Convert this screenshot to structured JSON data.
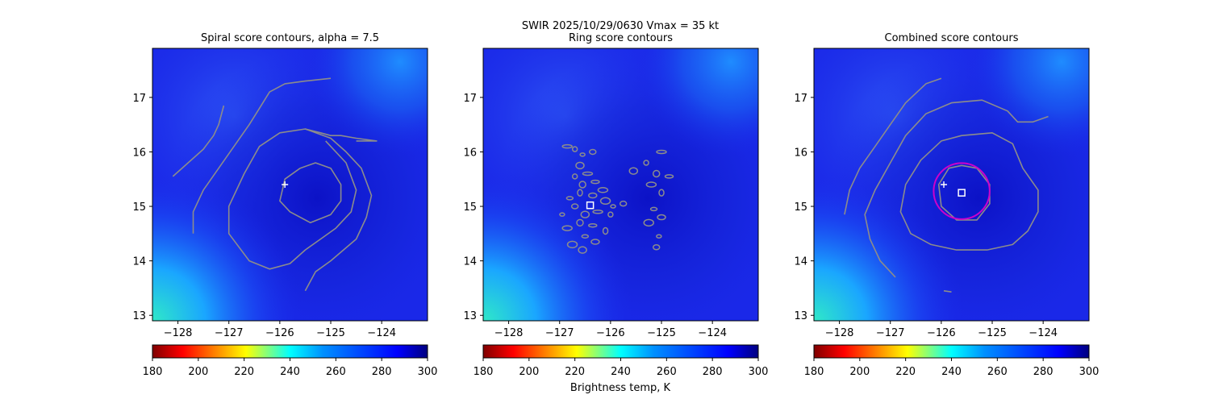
{
  "figure": {
    "suptitle": "SWIR  2025/10/29/0630    Vmax = 35 kt",
    "colorbar_label": "Brightness temp, K"
  },
  "colors": {
    "background": "#1a28e8",
    "contour": "#8c8c8c",
    "center_marker": "#ffffff",
    "fitted_circle": "#cc00cc"
  },
  "chart_data": [
    {
      "type": "heatmap",
      "title": "Spiral score contours, alpha =  7.5",
      "xlim": [
        -128.5,
        -123.1
      ],
      "ylim": [
        12.9,
        17.9
      ],
      "x_ticks": [
        -128,
        -127,
        -126,
        -125,
        -124
      ],
      "y_ticks": [
        13,
        14,
        15,
        16,
        17
      ],
      "grid": false,
      "markers": [
        {
          "kind": "plus",
          "lon": -125.9,
          "lat": 15.4
        }
      ],
      "contours": [
        {
          "points": [
            [
              -125.6,
              15.7
            ],
            [
              -125.3,
              15.8
            ],
            [
              -125.0,
              15.7
            ],
            [
              -124.8,
              15.4
            ],
            [
              -124.8,
              15.1
            ],
            [
              -125.0,
              14.85
            ],
            [
              -125.4,
              14.7
            ],
            [
              -125.8,
              14.9
            ],
            [
              -126.0,
              15.1
            ],
            [
              -125.9,
              15.5
            ],
            [
              -125.6,
              15.7
            ]
          ]
        },
        {
          "points": [
            [
              -125.5,
              13.45
            ],
            [
              -125.3,
              13.8
            ],
            [
              -125.0,
              14.0
            ],
            [
              -124.5,
              14.4
            ],
            [
              -124.3,
              14.8
            ],
            [
              -124.2,
              15.2
            ],
            [
              -124.4,
              15.7
            ],
            [
              -124.7,
              16.0
            ],
            [
              -125.0,
              16.25
            ],
            [
              -125.5,
              16.42
            ],
            [
              -126.0,
              16.35
            ],
            [
              -126.4,
              16.1
            ],
            [
              -126.7,
              15.6
            ],
            [
              -127.0,
              15.0
            ],
            [
              -127.0,
              14.5
            ],
            [
              -126.6,
              14.0
            ],
            [
              -126.2,
              13.85
            ],
            [
              -125.8,
              13.95
            ],
            [
              -125.5,
              14.2
            ],
            [
              -125.2,
              14.4
            ],
            [
              -124.9,
              14.6
            ],
            [
              -124.6,
              14.9
            ],
            [
              -124.5,
              15.3
            ],
            [
              -124.7,
              15.8
            ],
            [
              -125.1,
              16.2
            ]
          ]
        },
        {
          "points": [
            [
              -124.5,
              16.2
            ],
            [
              -124.1,
              16.2
            ],
            [
              -124.5,
              16.25
            ],
            [
              -124.8,
              16.3
            ],
            [
              -125.0,
              16.3
            ],
            [
              -125.2,
              16.35
            ],
            [
              -125.5,
              16.42
            ]
          ]
        },
        {
          "points": [
            [
              -127.7,
              14.5
            ],
            [
              -127.7,
              14.9
            ],
            [
              -127.5,
              15.3
            ],
            [
              -127.2,
              15.7
            ],
            [
              -126.9,
              16.1
            ],
            [
              -126.6,
              16.5
            ],
            [
              -126.4,
              16.8
            ],
            [
              -126.2,
              17.1
            ],
            [
              -125.9,
              17.25
            ],
            [
              -125.5,
              17.3
            ],
            [
              -125.0,
              17.35
            ]
          ]
        },
        {
          "points": [
            [
              -128.1,
              15.55
            ],
            [
              -127.8,
              15.8
            ],
            [
              -127.5,
              16.05
            ],
            [
              -127.3,
              16.3
            ],
            [
              -127.2,
              16.5
            ],
            [
              -127.1,
              16.85
            ]
          ]
        }
      ]
    },
    {
      "type": "heatmap",
      "title": "Ring score contours",
      "xlim": [
        -128.5,
        -123.1
      ],
      "ylim": [
        12.9,
        17.9
      ],
      "x_ticks": [
        -128,
        -127,
        -126,
        -125,
        -124
      ],
      "y_ticks": [
        13,
        14,
        15,
        16,
        17
      ],
      "grid": false,
      "markers": [
        {
          "kind": "square",
          "lon": -126.4,
          "lat": 15.02
        }
      ],
      "blobs": [
        [
          -126.55,
          15.95
        ],
        [
          -126.35,
          16.0
        ],
        [
          -126.6,
          15.75
        ],
        [
          -126.45,
          15.6
        ],
        [
          -126.7,
          15.55
        ],
        [
          -126.55,
          15.4
        ],
        [
          -126.3,
          15.45
        ],
        [
          -126.15,
          15.3
        ],
        [
          -126.6,
          15.25
        ],
        [
          -126.8,
          15.15
        ],
        [
          -126.35,
          15.2
        ],
        [
          -126.1,
          15.1
        ],
        [
          -125.95,
          15.0
        ],
        [
          -126.7,
          15.0
        ],
        [
          -126.5,
          14.85
        ],
        [
          -126.25,
          14.9
        ],
        [
          -126.0,
          14.85
        ],
        [
          -126.6,
          14.7
        ],
        [
          -126.35,
          14.65
        ],
        [
          -126.85,
          14.6
        ],
        [
          -126.1,
          14.55
        ],
        [
          -126.5,
          14.45
        ],
        [
          -126.3,
          14.35
        ],
        [
          -126.75,
          14.3
        ],
        [
          -126.95,
          14.85
        ],
        [
          -125.75,
          15.05
        ],
        [
          -125.55,
          15.65
        ],
        [
          -125.0,
          16.0
        ],
        [
          -125.3,
          15.8
        ],
        [
          -125.1,
          15.6
        ],
        [
          -124.85,
          15.55
        ],
        [
          -125.2,
          15.4
        ],
        [
          -125.0,
          15.25
        ],
        [
          -125.15,
          14.95
        ],
        [
          -125.0,
          14.8
        ],
        [
          -125.25,
          14.7
        ],
        [
          -125.05,
          14.45
        ],
        [
          -125.1,
          14.25
        ],
        [
          -126.55,
          14.2
        ],
        [
          -126.85,
          16.1
        ],
        [
          -126.7,
          16.05
        ]
      ]
    },
    {
      "type": "heatmap",
      "title": "Combined score contours",
      "xlim": [
        -128.5,
        -123.1
      ],
      "ylim": [
        12.9,
        17.9
      ],
      "x_ticks": [
        -128,
        -127,
        -126,
        -125,
        -124
      ],
      "y_ticks": [
        13,
        14,
        15,
        16,
        17
      ],
      "grid": false,
      "markers": [
        {
          "kind": "plus",
          "lon": -125.95,
          "lat": 15.4
        },
        {
          "kind": "square",
          "lon": -125.6,
          "lat": 15.25
        }
      ],
      "circle": {
        "lon": -125.6,
        "lat": 15.28,
        "radius_deg": 0.55
      },
      "contours": [
        {
          "points": [
            [
              -125.6,
              15.75
            ],
            [
              -125.3,
              15.7
            ],
            [
              -125.05,
              15.4
            ],
            [
              -125.05,
              15.05
            ],
            [
              -125.3,
              14.75
            ],
            [
              -125.7,
              14.75
            ],
            [
              -126.0,
              15.0
            ],
            [
              -126.05,
              15.4
            ],
            [
              -125.85,
              15.7
            ],
            [
              -125.6,
              15.75
            ]
          ]
        },
        {
          "points": [
            [
              -125.6,
              16.3
            ],
            [
              -125.0,
              16.35
            ],
            [
              -124.6,
              16.15
            ],
            [
              -124.4,
              15.7
            ],
            [
              -124.1,
              15.3
            ],
            [
              -124.1,
              14.9
            ],
            [
              -124.3,
              14.55
            ],
            [
              -124.6,
              14.3
            ],
            [
              -125.1,
              14.2
            ],
            [
              -125.7,
              14.2
            ],
            [
              -126.2,
              14.3
            ],
            [
              -126.6,
              14.5
            ],
            [
              -126.8,
              14.9
            ],
            [
              -126.7,
              15.4
            ],
            [
              -126.4,
              15.85
            ],
            [
              -126.0,
              16.2
            ],
            [
              -125.6,
              16.3
            ]
          ]
        },
        {
          "points": [
            [
              -126.9,
              13.7
            ],
            [
              -127.2,
              14.0
            ],
            [
              -127.4,
              14.4
            ],
            [
              -127.5,
              14.85
            ],
            [
              -127.3,
              15.3
            ],
            [
              -127.0,
              15.8
            ],
            [
              -126.7,
              16.3
            ],
            [
              -126.3,
              16.7
            ],
            [
              -125.8,
              16.9
            ],
            [
              -125.2,
              16.95
            ],
            [
              -124.7,
              16.75
            ],
            [
              -124.5,
              16.55
            ],
            [
              -124.2,
              16.55
            ],
            [
              -123.9,
              16.65
            ]
          ]
        },
        {
          "points": [
            [
              -127.9,
              14.85
            ],
            [
              -127.8,
              15.3
            ],
            [
              -127.6,
              15.7
            ],
            [
              -127.3,
              16.1
            ],
            [
              -127.0,
              16.5
            ],
            [
              -126.7,
              16.9
            ],
            [
              -126.3,
              17.25
            ],
            [
              -126.0,
              17.35
            ]
          ]
        },
        {
          "points": [
            [
              -125.95,
              13.45
            ],
            [
              -125.8,
              13.43
            ]
          ]
        }
      ]
    }
  ],
  "colorbar": {
    "min": 180,
    "max": 300,
    "ticks": [
      180,
      200,
      220,
      240,
      260,
      280,
      300
    ],
    "colormap": "jet_r"
  }
}
